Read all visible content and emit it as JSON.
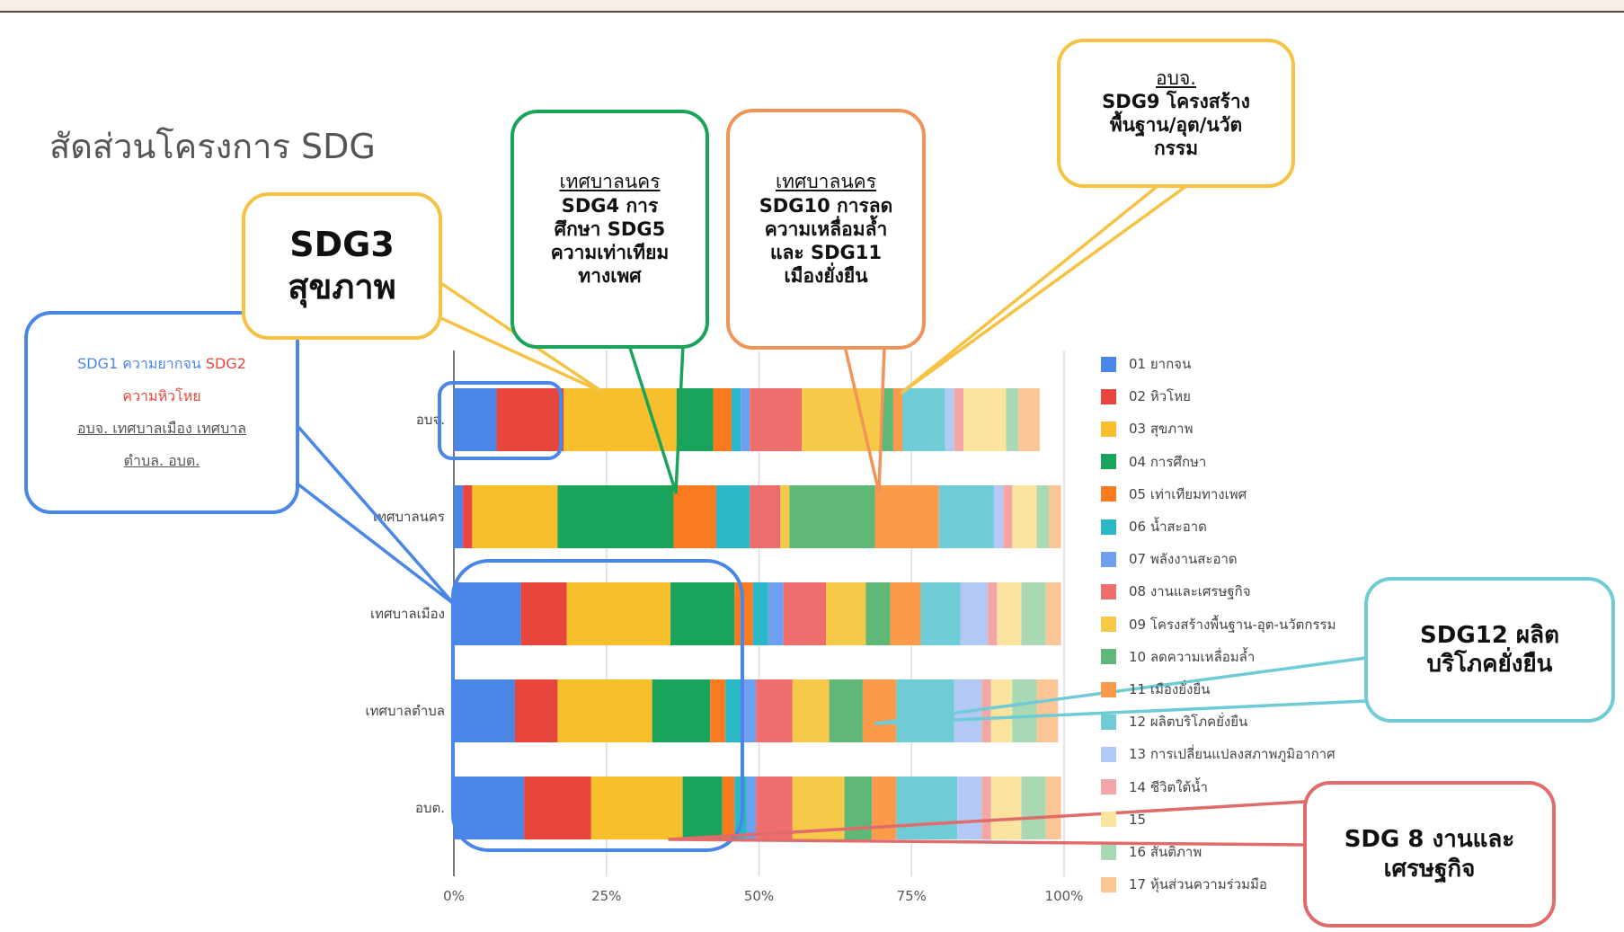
{
  "title": "สัดส่วนโครงการ SDG",
  "chart_data": {
    "type": "bar",
    "orientation": "horizontal",
    "stacked": true,
    "normalized": true,
    "categories": [
      "อบจ.",
      "เทศบาลนคร",
      "เทศบาลเมือง",
      "เทศบาลตำบล",
      "อบต."
    ],
    "x_ticks": [
      "0%",
      "25%",
      "50%",
      "75%",
      "100%"
    ],
    "xlim": [
      0,
      100
    ],
    "legend_position": "right",
    "series": [
      {
        "name": "01 ยากจน",
        "color": "#4a86e8",
        "values": [
          7,
          1.5,
          11,
          10,
          11.5
        ]
      },
      {
        "name": "02 หิวโหย",
        "color": "#e8453c",
        "values": [
          11,
          1.5,
          7.5,
          7,
          11
        ]
      },
      {
        "name": "03 สุขภาพ",
        "color": "#f6bf2b",
        "values": [
          18.5,
          14,
          17,
          15.5,
          15
        ]
      },
      {
        "name": "04 การศึกษา",
        "color": "#1aa35a",
        "values": [
          6,
          19,
          10.5,
          9.5,
          6.5
        ]
      },
      {
        "name": "05 เท่าเทียมทางเพศ",
        "color": "#fa7a1f",
        "values": [
          3,
          7,
          3,
          2.5,
          2
        ]
      },
      {
        "name": "06 น้ำสะอาด",
        "color": "#2bb8c6",
        "values": [
          1.5,
          5.5,
          2.5,
          3,
          2
        ]
      },
      {
        "name": "07 พลังงานสะอาด",
        "color": "#6e9ff0",
        "values": [
          1.5,
          0,
          2.5,
          2,
          1.5
        ]
      },
      {
        "name": "08 งานและเศรษฐกิจ",
        "color": "#ee6e6e",
        "values": [
          8.5,
          5,
          7,
          6,
          6
        ]
      },
      {
        "name": "09 โครงสร้างพื้นฐาน-อุต-นวัตกรรม",
        "color": "#f7c948",
        "values": [
          13,
          1.5,
          6.5,
          6,
          8.5
        ]
      },
      {
        "name": "10 ลดความเหลื่อมล้ำ",
        "color": "#5fb878",
        "values": [
          2,
          14,
          4,
          5.5,
          4.5
        ]
      },
      {
        "name": "11 เมืองยั่งยืน",
        "color": "#fb9a4a",
        "values": [
          1.5,
          10.5,
          5,
          5.5,
          4
        ]
      },
      {
        "name": "12 ผลิตบริโภคยั่งยืน",
        "color": "#6fcbd5",
        "values": [
          7,
          9,
          6.5,
          9.5,
          10
        ]
      },
      {
        "name": "13 การเปลี่ยนแปลงสภาพภูมิอากาศ",
        "color": "#b3c9f5",
        "values": [
          1.5,
          1.5,
          4.5,
          4.5,
          4
        ]
      },
      {
        "name": "14 ชีวิตใต้น้ำ",
        "color": "#f4a6a6",
        "values": [
          1.5,
          1.5,
          1.5,
          1.5,
          1.5
        ]
      },
      {
        "name": "15",
        "color": "#fbe3a0",
        "values": [
          7,
          4,
          4,
          3.5,
          5
        ]
      },
      {
        "name": "16 สันติภาพ",
        "color": "#a8d9b4",
        "values": [
          2,
          2,
          4,
          4,
          4
        ]
      },
      {
        "name": "17 หุ้นส่วนความร่วมมือ",
        "color": "#fcc596",
        "values": [
          3.5,
          2,
          2.5,
          3.5,
          2.5
        ]
      }
    ]
  },
  "callouts": {
    "sdg1": {
      "line1a": "SDG1 ความยากจน",
      "line1b": "SDG2",
      "line2": "ความหิวโหย",
      "line3": "อบจ. เทศบาลเมือง เทศบาล",
      "line4": "ตำบล. อบต."
    },
    "sdg3": {
      "line1": "SDG3",
      "line2": "สุขภาพ"
    },
    "sdg4": {
      "heading": "เทศบาลนคร",
      "line1": "SDG4 การ",
      "line2": "ศึกษา SDG5",
      "line3": "ความเท่าเทียม",
      "line4": "ทางเพศ"
    },
    "sdg10": {
      "heading": "เทศบาลนคร",
      "line1": "SDG10 การลด",
      "line2": "ความเหลื่อมล้ำ",
      "line3": "และ SDG11",
      "line4": "เมืองยั่งยืน"
    },
    "sdg9": {
      "heading": "อบจ.",
      "line1": "SDG9 โครงสร้าง",
      "line2": "พื้นฐาน/อุต/นวัต",
      "line3": "กรรม"
    },
    "sdg12": {
      "line1": "SDG12 ผลิต",
      "line2": "บริโภคยั่งยืน"
    },
    "sdg8": {
      "line1": "SDG 8 งานและ",
      "line2": "เศรษฐกิจ"
    }
  },
  "colors": {
    "blue": "#4a86e8",
    "yellow": "#f6c244",
    "green": "#1aa35a",
    "orange": "#f0955a",
    "teal": "#6fcbd5",
    "red": "#e06b6b"
  }
}
